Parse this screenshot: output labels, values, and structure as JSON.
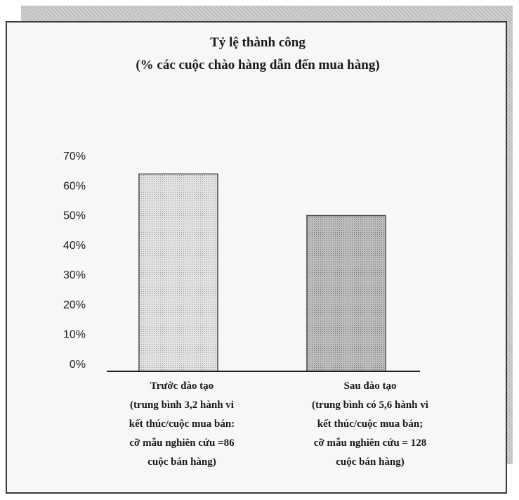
{
  "chart_data": {
    "type": "bar",
    "title": "Tỷ lệ thành công",
    "subtitle": "(% các cuộc chào hàng dẫn đến mua hàng)",
    "y_ticks": [
      "0%",
      "10%",
      "20%",
      "30%",
      "40%",
      "50%",
      "60%",
      "70%"
    ],
    "ylim": [
      0,
      70
    ],
    "categories": [
      [
        "Trước đào tạo",
        "(trung bình 3,2 hành vi",
        "kết thúc/cuộc mua bán:",
        "cỡ mẫu nghiên cứu =86",
        "cuộc bán hàng)"
      ],
      [
        "Sau đào tạo",
        "(trung bình có 5,6 hành vi",
        "kết thúc/cuộc mua bán;",
        "cỡ mẫu nghiên cứu = 128",
        "cuộc bán hàng)"
      ]
    ],
    "values": [
      64,
      50
    ],
    "bar_colors": [
      "#cfcfcf",
      "#a9a9a9"
    ],
    "grid": false,
    "legend": "none"
  }
}
